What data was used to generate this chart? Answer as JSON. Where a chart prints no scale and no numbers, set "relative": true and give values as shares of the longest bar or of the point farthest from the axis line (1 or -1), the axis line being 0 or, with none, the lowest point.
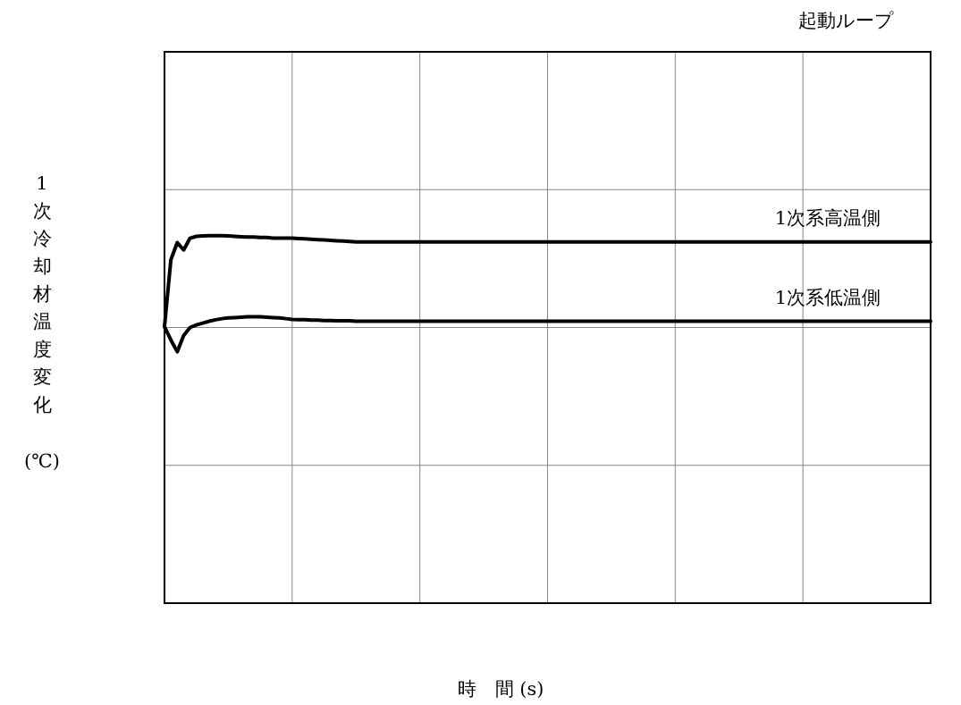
{
  "chart_data": {
    "type": "line",
    "title": "起動ループ",
    "xlabel": "時　間 (s)",
    "ylabel": "1次冷却材温度変化 (℃)",
    "relative": true,
    "grid": true,
    "categories": [
      null,
      null,
      null,
      null,
      null,
      null,
      null,
      null,
      null,
      null,
      null,
      null,
      null,
      null,
      null,
      null,
      null,
      null,
      null,
      null,
      null,
      null,
      null,
      null,
      null,
      null,
      null,
      null,
      null,
      null,
      null,
      null,
      null,
      null,
      null,
      null,
      null,
      null,
      null,
      null,
      null,
      null,
      null,
      null,
      null,
      null,
      null,
      null,
      null,
      null,
      null,
      null,
      null,
      null,
      null,
      null,
      null,
      null,
      null,
      null,
      null,
      null,
      null,
      null,
      null,
      null,
      null,
      null,
      null,
      null,
      null,
      null,
      null,
      null,
      null,
      null,
      null,
      null,
      null,
      null,
      null,
      null,
      null,
      null,
      null,
      null,
      null,
      null,
      null,
      null,
      null,
      null,
      null,
      null,
      null,
      null,
      null,
      null,
      null,
      null,
      null,
      null,
      null,
      null,
      null,
      null,
      null,
      null,
      null,
      null,
      null,
      null,
      null,
      null,
      null,
      null,
      null,
      null,
      null,
      null,
      null
    ],
    "series": [
      {
        "name": "1次系高温側",
        "color": "#000000",
        "values": [
          0.752,
          0.934,
          0.981,
          0.961,
          0.993,
          0.998,
          0.999,
          1,
          1,
          1,
          0.999,
          0.998,
          0.997,
          0.996,
          0.996,
          0.995,
          0.995,
          0.993,
          0.993,
          0.993,
          0.993,
          0.992,
          0.991,
          0.99,
          0.989,
          0.988,
          0.987,
          0.986,
          0.985,
          0.984,
          0.983,
          0.983,
          0.983,
          0.983,
          0.983,
          0.983,
          0.983,
          0.983,
          0.983,
          0.983,
          0.983,
          0.983,
          0.983,
          0.983,
          0.983,
          0.983,
          0.983,
          0.983,
          0.983,
          0.983,
          0.983,
          0.983,
          0.983,
          0.983,
          0.983,
          0.983,
          0.983,
          0.983,
          0.983,
          0.983,
          0.983,
          0.983,
          0.983,
          0.983,
          0.983,
          0.983,
          0.983,
          0.983,
          0.983,
          0.983,
          0.983,
          0.983,
          0.983,
          0.983,
          0.983,
          0.983,
          0.983,
          0.983,
          0.983,
          0.983,
          0.983,
          0.983,
          0.983,
          0.983,
          0.983,
          0.983,
          0.983,
          0.983,
          0.983,
          0.983,
          0.983,
          0.983,
          0.983,
          0.983,
          0.983,
          0.983,
          0.983,
          0.983,
          0.983,
          0.983,
          0.983,
          0.983,
          0.983,
          0.983,
          0.983,
          0.983,
          0.983,
          0.983,
          0.983,
          0.983,
          0.983,
          0.983,
          0.983,
          0.983,
          0.983,
          0.983,
          0.983,
          0.983,
          0.983,
          0.983,
          0.983
        ]
      },
      {
        "name": "1次系低温側",
        "color": "#000000",
        "values": [
          0.752,
          0.716,
          0.684,
          0.728,
          0.75,
          0.757,
          0.762,
          0.767,
          0.771,
          0.774,
          0.776,
          0.777,
          0.778,
          0.779,
          0.779,
          0.779,
          0.778,
          0.777,
          0.776,
          0.774,
          0.772,
          0.771,
          0.771,
          0.77,
          0.77,
          0.769,
          0.769,
          0.768,
          0.768,
          0.768,
          0.767,
          0.767,
          0.767,
          0.767,
          0.767,
          0.767,
          0.767,
          0.767,
          0.767,
          0.767,
          0.767,
          0.767,
          0.767,
          0.767,
          0.767,
          0.767,
          0.767,
          0.767,
          0.767,
          0.767,
          0.767,
          0.767,
          0.767,
          0.767,
          0.767,
          0.767,
          0.767,
          0.767,
          0.767,
          0.767,
          0.767,
          0.767,
          0.767,
          0.767,
          0.767,
          0.767,
          0.767,
          0.767,
          0.767,
          0.767,
          0.767,
          0.767,
          0.767,
          0.767,
          0.767,
          0.767,
          0.767,
          0.767,
          0.767,
          0.767,
          0.767,
          0.767,
          0.767,
          0.767,
          0.767,
          0.767,
          0.767,
          0.767,
          0.767,
          0.767,
          0.767,
          0.767,
          0.767,
          0.767,
          0.767,
          0.767,
          0.767,
          0.767,
          0.767,
          0.767,
          0.767,
          0.767,
          0.767,
          0.767,
          0.767,
          0.767,
          0.767,
          0.767,
          0.767,
          0.767,
          0.767,
          0.767,
          0.767,
          0.767,
          0.767,
          0.767,
          0.767,
          0.767,
          0.767,
          0.767,
          0.767
        ]
      }
    ]
  }
}
